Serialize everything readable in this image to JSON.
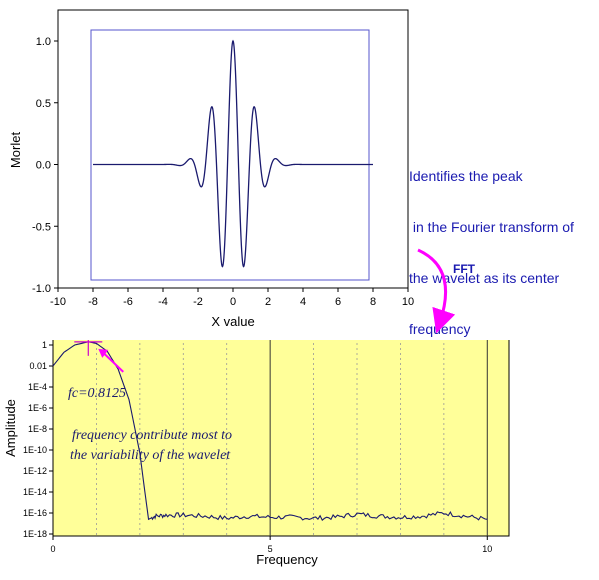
{
  "annotation": {
    "lines": [
      "Identifies the peak",
      " in the Fourier transform of",
      "the wavelet as its center",
      "frequency"
    ],
    "fft_label": "FFT"
  },
  "colors": {
    "curve": "#1a1a6e",
    "plot_border": "#5555cc",
    "bottom_background": "#ffff99",
    "annotation_text": "#1a1ab0",
    "arrow": "#ff00ff",
    "grid": "#888888"
  },
  "chart_data": [
    {
      "type": "line",
      "xlabel": "X value",
      "ylabel": "Morlet",
      "xlim": [
        -10,
        10
      ],
      "ylim": [
        -1.0,
        1.0
      ],
      "x_ticks": [
        "-10",
        "-8",
        "-6",
        "-4",
        "-2",
        "0",
        "2",
        "4",
        "6",
        "8",
        "10"
      ],
      "y_ticks": [
        "-1.0",
        "-0.5",
        "0.0",
        "0.5",
        "1.0"
      ],
      "series": [
        {
          "function": "exp(-x^2/2)*cos(5x)",
          "x_range": [
            -8,
            8
          ],
          "peaks": [
            {
              "x": 0.0,
              "y": 1.0
            },
            {
              "x": -1.26,
              "y": 0.46
            },
            {
              "x": 1.26,
              "y": 0.46
            },
            {
              "x": -0.63,
              "y": -0.82
            },
            {
              "x": 0.63,
              "y": -0.82
            }
          ]
        }
      ]
    },
    {
      "type": "line",
      "xlabel": "Frequency",
      "ylabel": "Amplitude",
      "xlim": [
        0,
        10.5
      ],
      "ylog": true,
      "ylim": [
        "1E-18",
        "10"
      ],
      "x_ticks": [
        "0",
        "5",
        "10"
      ],
      "y_ticks": [
        "1",
        "0.01",
        "1E-4",
        "1E-6",
        "1E-8",
        "1E-10",
        "1E-12",
        "1E-14",
        "1E-16",
        "1E-18"
      ],
      "series": [
        {
          "points": [
            [
              0.0,
              -2.0
            ],
            [
              0.25,
              -0.7
            ],
            [
              0.5,
              0.0
            ],
            [
              0.8125,
              0.3
            ],
            [
              1.0,
              0.15
            ],
            [
              1.25,
              -0.6
            ],
            [
              1.5,
              -2.3
            ],
            [
              1.75,
              -5.2
            ],
            [
              2.0,
              -10.3
            ],
            [
              2.1,
              -13.5
            ],
            [
              2.2,
              -16.6
            ],
            [
              2.35,
              -16.3
            ],
            [
              2.6,
              -16.2
            ],
            [
              3.0,
              -16.2
            ],
            [
              3.5,
              -16.3
            ],
            [
              4.0,
              -16.5
            ],
            [
              4.5,
              -16.3
            ],
            [
              5.0,
              -16.4
            ],
            [
              5.5,
              -16.4
            ],
            [
              6.0,
              -16.5
            ],
            [
              6.5,
              -16.4
            ],
            [
              7.0,
              -16.1
            ],
            [
              7.5,
              -16.3
            ],
            [
              8.0,
              -16.4
            ],
            [
              8.5,
              -16.3
            ],
            [
              9.0,
              -16.0
            ],
            [
              9.5,
              -16.3
            ],
            [
              10.0,
              -16.6
            ]
          ]
        }
      ],
      "annotations": {
        "fc": "fc=0.8125",
        "note_line1": "frequency contribute most to",
        "note_line2": "the variability of the wavelet"
      }
    }
  ]
}
